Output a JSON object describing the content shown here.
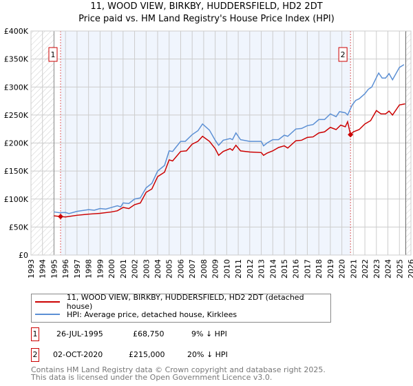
{
  "title": "11, WOOD VIEW, BIRKBY, HUDDERSFIELD, HD2 2DT",
  "subtitle": "Price paid vs. HM Land Registry's House Price Index (HPI)",
  "chart_data": {
    "type": "line",
    "xlim": [
      1993,
      2026
    ],
    "ylim": [
      0,
      400000
    ],
    "yticks": [
      {
        "v": 0,
        "label": "£0"
      },
      {
        "v": 50000,
        "label": "£50K"
      },
      {
        "v": 100000,
        "label": "£100K"
      },
      {
        "v": 150000,
        "label": "£150K"
      },
      {
        "v": 200000,
        "label": "£200K"
      },
      {
        "v": 250000,
        "label": "£250K"
      },
      {
        "v": 300000,
        "label": "£300K"
      },
      {
        "v": 350000,
        "label": "£350K"
      },
      {
        "v": 400000,
        "label": "£400K"
      }
    ],
    "xticks": [
      "1993",
      "1994",
      "1995",
      "1996",
      "1997",
      "1998",
      "1999",
      "2000",
      "2001",
      "2002",
      "2003",
      "2004",
      "2005",
      "2006",
      "2007",
      "2008",
      "2009",
      "2010",
      "2011",
      "2012",
      "2013",
      "2014",
      "2015",
      "2016",
      "2017",
      "2018",
      "2019",
      "2020",
      "2021",
      "2022",
      "2023",
      "2024",
      "2025",
      "2026"
    ],
    "grid": true,
    "series": [
      {
        "name": "11, WOOD VIEW, BIRKBY, HUDDERSFIELD, HD2 2DT (detached house)",
        "color": "#cc0000",
        "points": [
          [
            1995,
            70000
          ],
          [
            1995.57,
            68750
          ],
          [
            1996,
            68000
          ],
          [
            1997,
            71000
          ],
          [
            1998,
            73000
          ],
          [
            1999,
            74500
          ],
          [
            2000,
            77000
          ],
          [
            2000.5,
            79000
          ],
          [
            2001,
            85000
          ],
          [
            2001.5,
            83000
          ],
          [
            2002,
            90000
          ],
          [
            2002.5,
            93000
          ],
          [
            2003,
            112000
          ],
          [
            2003.5,
            118000
          ],
          [
            2004,
            140000
          ],
          [
            2004.6,
            148000
          ],
          [
            2005,
            170000
          ],
          [
            2005.3,
            168000
          ],
          [
            2006,
            185000
          ],
          [
            2006.5,
            186000
          ],
          [
            2007,
            198000
          ],
          [
            2007.5,
            203000
          ],
          [
            2007.9,
            212000
          ],
          [
            2008.5,
            203000
          ],
          [
            2009,
            190000
          ],
          [
            2009.3,
            178000
          ],
          [
            2009.7,
            185000
          ],
          [
            2010.3,
            190000
          ],
          [
            2010.5,
            187000
          ],
          [
            2010.8,
            196000
          ],
          [
            2011.2,
            186000
          ],
          [
            2012,
            184000
          ],
          [
            2013,
            183000
          ],
          [
            2013.2,
            178000
          ],
          [
            2013.5,
            182000
          ],
          [
            2014,
            186000
          ],
          [
            2014.5,
            192000
          ],
          [
            2015,
            195000
          ],
          [
            2015.3,
            191000
          ],
          [
            2016,
            204000
          ],
          [
            2016.5,
            205000
          ],
          [
            2017,
            210000
          ],
          [
            2017.5,
            211000
          ],
          [
            2018,
            218000
          ],
          [
            2018.5,
            220000
          ],
          [
            2019,
            228000
          ],
          [
            2019.5,
            224000
          ],
          [
            2019.9,
            232000
          ],
          [
            2020.3,
            229000
          ],
          [
            2020.5,
            238000
          ],
          [
            2020.75,
            215000
          ],
          [
            2021,
            220000
          ],
          [
            2021.5,
            224000
          ],
          [
            2022,
            234000
          ],
          [
            2022.5,
            240000
          ],
          [
            2023,
            258000
          ],
          [
            2023.4,
            252000
          ],
          [
            2023.8,
            252000
          ],
          [
            2024.1,
            257000
          ],
          [
            2024.4,
            250000
          ],
          [
            2025,
            268000
          ],
          [
            2025.5,
            270000
          ]
        ]
      },
      {
        "name": "HPI: Average price, detached house, Kirklees",
        "color": "#5b8fd4",
        "points": [
          [
            1995,
            77000
          ],
          [
            1995.5,
            75500
          ],
          [
            1996,
            76000
          ],
          [
            1996.3,
            74000
          ],
          [
            1997,
            78000
          ],
          [
            1998,
            81000
          ],
          [
            1998.5,
            80000
          ],
          [
            1999,
            83000
          ],
          [
            1999.5,
            82000
          ],
          [
            2000,
            85000
          ],
          [
            2000.5,
            88000
          ],
          [
            2000.8,
            86000
          ],
          [
            2001,
            93000
          ],
          [
            2001.5,
            92000
          ],
          [
            2002,
            100000
          ],
          [
            2002.5,
            102000
          ],
          [
            2003,
            120000
          ],
          [
            2003.5,
            128000
          ],
          [
            2004,
            150000
          ],
          [
            2004.6,
            160000
          ],
          [
            2005,
            186000
          ],
          [
            2005.3,
            185000
          ],
          [
            2006,
            203000
          ],
          [
            2006.4,
            203000
          ],
          [
            2007,
            215000
          ],
          [
            2007.5,
            222000
          ],
          [
            2007.9,
            234000
          ],
          [
            2008.5,
            223000
          ],
          [
            2009,
            205000
          ],
          [
            2009.3,
            196000
          ],
          [
            2009.7,
            205000
          ],
          [
            2010.3,
            208000
          ],
          [
            2010.5,
            206000
          ],
          [
            2010.8,
            218000
          ],
          [
            2011.2,
            206000
          ],
          [
            2012,
            203000
          ],
          [
            2013,
            203000
          ],
          [
            2013.2,
            195000
          ],
          [
            2013.5,
            200000
          ],
          [
            2014,
            206000
          ],
          [
            2014.5,
            206000
          ],
          [
            2015,
            214000
          ],
          [
            2015.3,
            212000
          ],
          [
            2016,
            225000
          ],
          [
            2016.5,
            226000
          ],
          [
            2017,
            231000
          ],
          [
            2017.5,
            233000
          ],
          [
            2018,
            242000
          ],
          [
            2018.5,
            242000
          ],
          [
            2019,
            252000
          ],
          [
            2019.5,
            247000
          ],
          [
            2019.8,
            256000
          ],
          [
            2020.3,
            254000
          ],
          [
            2020.5,
            250000
          ],
          [
            2020.9,
            268000
          ],
          [
            2021.2,
            276000
          ],
          [
            2021.5,
            279000
          ],
          [
            2022,
            288000
          ],
          [
            2022.3,
            296000
          ],
          [
            2022.6,
            300000
          ],
          [
            2023,
            317000
          ],
          [
            2023.2,
            325000
          ],
          [
            2023.5,
            316000
          ],
          [
            2023.8,
            316000
          ],
          [
            2024.1,
            324000
          ],
          [
            2024.4,
            313000
          ],
          [
            2025,
            335000
          ],
          [
            2025.4,
            340000
          ]
        ]
      }
    ],
    "sales": [
      {
        "label": "1",
        "x": 1995.57,
        "y": 68750
      },
      {
        "label": "2",
        "x": 2020.75,
        "y": 215000
      }
    ],
    "legend_placement": "below"
  },
  "table": [
    {
      "num": "1",
      "date": "26-JUL-1995",
      "price": "£68,750",
      "hpi": "9% ↓ HPI"
    },
    {
      "num": "2",
      "date": "02-OCT-2020",
      "price": "£215,000",
      "hpi": "20% ↓ HPI"
    }
  ],
  "footer": [
    "Contains HM Land Registry data © Crown copyright and database right 2025.",
    "This data is licensed under the Open Government Licence v3.0."
  ]
}
